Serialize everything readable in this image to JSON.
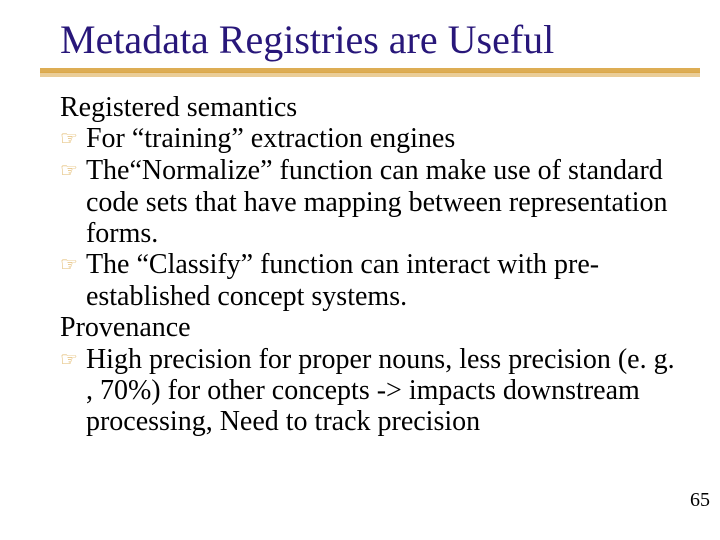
{
  "title": "Metadata Registries are Useful",
  "title_color": "#28177a",
  "underline_color": "#d9a441",
  "bullet_color": "#d9a441",
  "body_color": "#000000",
  "background_color": "#ffffff",
  "title_fontsize": 40,
  "body_fontsize": 28,
  "bullet_glyph": "☞",
  "sections": [
    {
      "heading": "Registered semantics",
      "items": [
        "For “training” extraction engines",
        "The“Normalize” function can make use of standard code sets that have mapping between representation forms.",
        "The “Classify” function can interact with pre-established concept systems."
      ]
    },
    {
      "heading": "Provenance",
      "items": [
        "High precision for proper nouns, less precision (e. g. , 70%) for other concepts -> impacts downstream processing, Need to track precision"
      ]
    }
  ],
  "page_number": "65"
}
